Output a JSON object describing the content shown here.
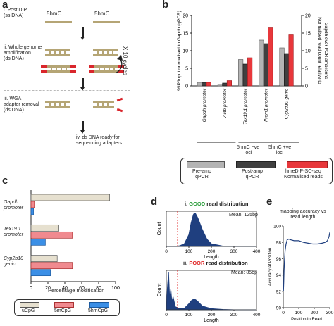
{
  "panel_a": {
    "letter": "a",
    "steps": [
      {
        "label": "i. Post DIP\n(ss DNA)"
      },
      {
        "label": "ii. Whole genome\namplification\n(ds DNA)"
      },
      {
        "label": "iii. WGA\nadapter removal\n(ds DNA)"
      },
      {
        "label": "iv. ds DNA ready for\nsequencing adapters"
      }
    ],
    "mark1": "5hmC",
    "mark2": "5hmC",
    "cycles": "X 10 cycles",
    "colors": {
      "strand": "#b5a575",
      "adapter": "#d9262c"
    }
  },
  "panel_b": {
    "letter": "b",
    "y_left_label": "%IP/Input normalised to Gapdh (qPCR)",
    "y_right_label": "Normalised read count relative to\nGapdh over PCR amplicons",
    "group_labels": [
      "5hmC −ve\nloci",
      "5hmC +ve\nloci"
    ],
    "legend": [
      {
        "label": "Pre-amp\nqPCR",
        "color": "#b4b4b4"
      },
      {
        "label": "Post-amp\nqPCR",
        "color": "#404040"
      },
      {
        "label": "hmeDIP-SC-seq\nNormalised reads",
        "color": "#e8373b"
      }
    ]
  },
  "panel_c": {
    "letter": "c",
    "xlabel": "Percentage modification",
    "group_labels": [
      "Gapdh\npromoter",
      "Tex19.1\npromoter",
      "Cyp2b10\ngenic"
    ],
    "legend": [
      {
        "label": "uCpG",
        "color": "#e6e0cf"
      },
      {
        "label": "5mCpG",
        "color": "#f08a8f"
      },
      {
        "label": "5hmCpG",
        "color": "#3b8fe6"
      }
    ]
  },
  "panel_d": {
    "letter": "d",
    "top_title_prefix": "i. ",
    "top_title_word": "GOOD",
    "top_title_suffix": " read distribution",
    "top_mean": "Mean: 125bp",
    "bottom_title_prefix": "ii. ",
    "bottom_title_word": "POOR",
    "bottom_title_suffix": " read distribution",
    "bottom_mean": "Mean: 85bp",
    "ylabel": "Count",
    "xlabel": "Length",
    "good_color": "#2a9d3a",
    "poor_color": "#e02424",
    "fill_color": "#1f3f7f"
  },
  "panel_e": {
    "letter": "e",
    "title": "mapping accuracy vs\nread length",
    "ylabel": "Accuracy at Position",
    "xlabel": "Position in Read"
  },
  "chart_data": [
    {
      "id": "b",
      "type": "bar",
      "categories": [
        "Gapdh promoter",
        "Actb promoter",
        "Tex19.1 promoter",
        "Prom1 promoter",
        "Cyp2b10 genic"
      ],
      "series": [
        {
          "name": "Pre-amp qPCR",
          "values": [
            1,
            0.5,
            7.5,
            13,
            10.8
          ]
        },
        {
          "name": "Post-amp qPCR",
          "values": [
            1,
            0.8,
            6.2,
            12,
            9.2
          ]
        },
        {
          "name": "hmeDIP-SC-seq Normalised reads",
          "values": [
            1,
            1.5,
            8,
            16.5,
            14.7
          ]
        }
      ],
      "ylim": [
        0,
        20
      ],
      "yticks": [
        0,
        5,
        10,
        15,
        20
      ],
      "y2ticks": [
        0,
        5,
        10,
        15,
        20
      ],
      "ylabel": "%IP/Input normalised to Gapdh (qPCR)",
      "y2label": "Normalised read count relative to Gapdh over PCR amplicons"
    },
    {
      "id": "c",
      "type": "bar",
      "orientation": "horizontal",
      "categories": [
        "Gapdh promoter",
        "Tex19.1 promoter",
        "Cyp2b10 genic"
      ],
      "series": [
        {
          "name": "uCpG",
          "values": [
            93,
            33,
            31
          ]
        },
        {
          "name": "5mCpG",
          "values": [
            4,
            49,
            49
          ]
        },
        {
          "name": "5hmCpG",
          "values": [
            3,
            17,
            23
          ]
        }
      ],
      "xlim": [
        0,
        100
      ],
      "xticks": [
        0,
        20,
        40,
        60,
        80,
        100
      ],
      "xlabel": "Percentage modification"
    },
    {
      "id": "d-i",
      "type": "area",
      "x": [
        0,
        20,
        40,
        60,
        80,
        100,
        110,
        120,
        125,
        130,
        140,
        160,
        180,
        200,
        250,
        300,
        350,
        400
      ],
      "y": [
        0,
        0,
        0.5,
        2,
        8,
        35,
        70,
        95,
        100,
        98,
        85,
        50,
        22,
        8,
        1,
        0,
        0,
        0
      ],
      "xticks": [
        0,
        100,
        200,
        300,
        400
      ],
      "cutoff": 50,
      "ylabel": "Count",
      "xlabel": "Length"
    },
    {
      "id": "d-ii",
      "type": "area",
      "x": [
        0,
        5,
        10,
        15,
        20,
        25,
        30,
        40,
        60,
        80,
        100,
        110,
        120,
        130,
        140,
        160,
        200,
        250,
        300,
        400
      ],
      "y": [
        0,
        60,
        100,
        30,
        55,
        20,
        35,
        8,
        3,
        4,
        16,
        24,
        28,
        27,
        22,
        10,
        3,
        1,
        0,
        0
      ],
      "xticks": [
        0,
        100,
        200,
        300,
        400
      ],
      "cutoff": 50,
      "ylabel": "Count",
      "xlabel": "Length"
    },
    {
      "id": "e",
      "type": "line",
      "x": [
        1,
        3,
        5,
        8,
        12,
        18,
        25,
        35,
        50,
        70,
        100,
        130,
        160,
        190,
        220,
        250,
        270,
        285,
        295,
        300
      ],
      "y": [
        92,
        93,
        94.5,
        95.8,
        97,
        97.8,
        98.3,
        98.4,
        98.3,
        98.2,
        98.2,
        98.0,
        97.9,
        97.8,
        97.8,
        97.9,
        98.0,
        98.2,
        98.7,
        99.2
      ],
      "xlim": [
        0,
        300
      ],
      "ylim": [
        90,
        100
      ],
      "xticks": [
        0,
        100,
        200,
        300
      ],
      "yticks": [
        90,
        92,
        94,
        96,
        98,
        100
      ],
      "title": "mapping accuracy vs read length",
      "ylabel": "Accuracy at Position",
      "xlabel": "Position in Read"
    }
  ]
}
